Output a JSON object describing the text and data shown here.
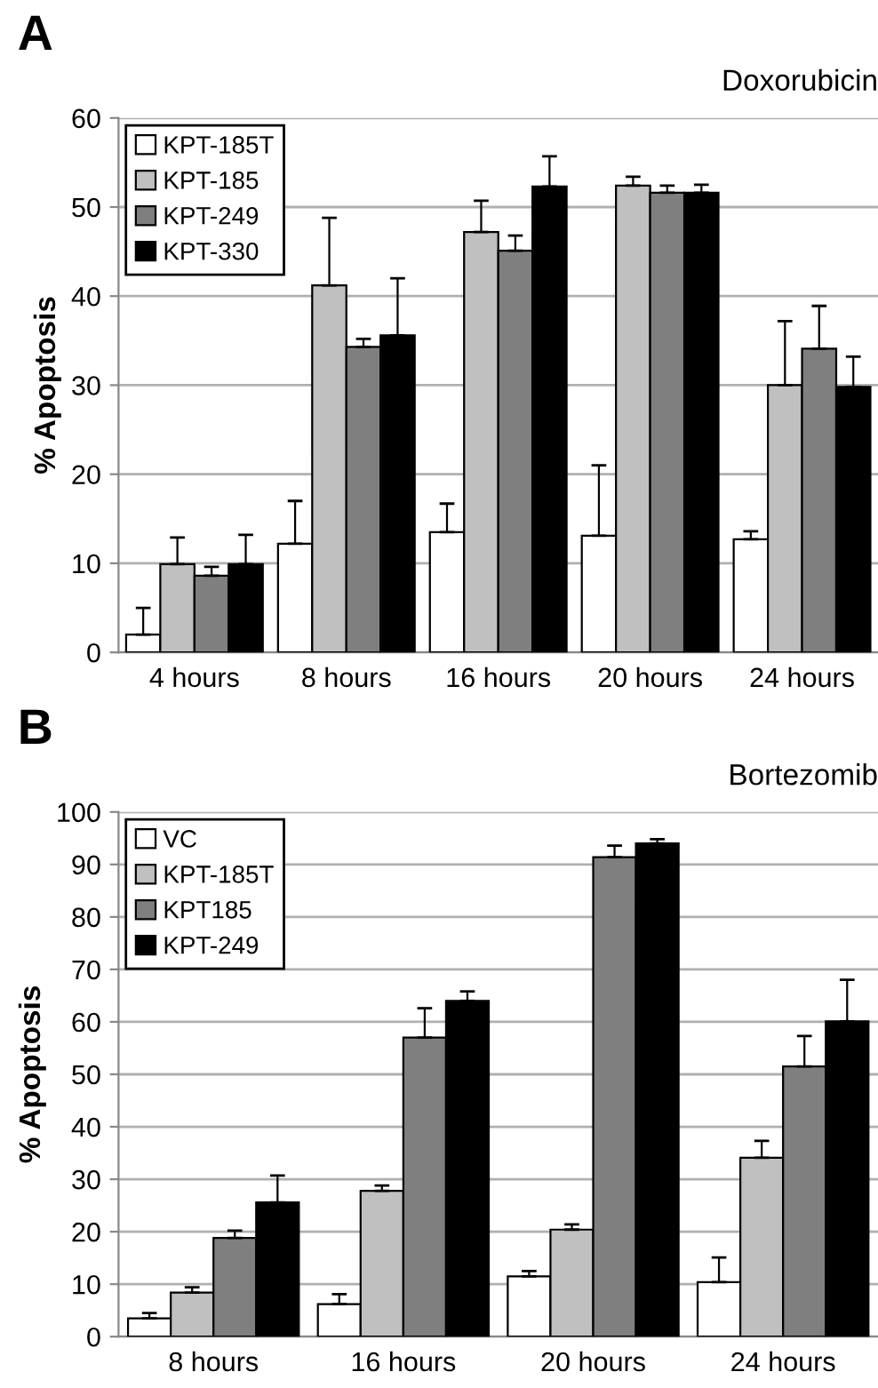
{
  "chart_data": [
    {
      "type": "bar",
      "title": "A",
      "subtitle": "Doxorubicin",
      "ylabel": "% Apoptosis",
      "categories": [
        "4 hours",
        "8 hours",
        "16 hours",
        "20 hours",
        "24 hours"
      ],
      "series": [
        {
          "name": "KPT-185T",
          "color": "#ffffff",
          "values": [
            2,
            12.2,
            13.5,
            13.1,
            12.7
          ],
          "errors": [
            [
              2,
              5
            ],
            [
              12.2,
              17
            ],
            [
              13.5,
              16.7
            ],
            [
              13.1,
              21
            ],
            [
              12.7,
              13.6
            ]
          ]
        },
        {
          "name": "KPT-185",
          "color": "#c0c0c0",
          "values": [
            9.9,
            41.2,
            47.2,
            52.4,
            30
          ],
          "errors": [
            [
              9.9,
              12.9
            ],
            [
              41.2,
              48.8
            ],
            [
              47.2,
              50.7
            ],
            [
              52.4,
              53.4
            ],
            [
              30,
              37.2
            ]
          ]
        },
        {
          "name": "KPT-249",
          "color": "#7f7f7f",
          "values": [
            8.6,
            34.3,
            45.1,
            51.6,
            34.1
          ],
          "errors": [
            [
              8.6,
              9.6
            ],
            [
              34.3,
              35.2
            ],
            [
              45.1,
              46.8
            ],
            [
              51.6,
              52.4
            ],
            [
              34.1,
              38.9
            ]
          ]
        },
        {
          "name": "KPT-330",
          "color": "#000000",
          "values": [
            9.9,
            35.6,
            52.3,
            51.6,
            29.8
          ],
          "errors": [
            [
              9.9,
              13.2
            ],
            [
              35.6,
              42
            ],
            [
              52.3,
              55.7
            ],
            [
              51.6,
              52.5
            ],
            [
              29.8,
              33.2
            ]
          ]
        }
      ],
      "ylim": [
        0,
        60
      ],
      "yticks": [
        0,
        10,
        20,
        30,
        40,
        50,
        60
      ],
      "grid": "y",
      "legend": "top left"
    },
    {
      "type": "bar",
      "title": "B",
      "subtitle": "Bortezomib",
      "ylabel": "% Apoptosis",
      "categories": [
        "8 hours",
        "16 hours",
        "20 hours",
        "24 hours"
      ],
      "series": [
        {
          "name": "VC",
          "color": "#ffffff",
          "values": [
            3.5,
            6.2,
            11.5,
            10.4
          ],
          "errors": [
            [
              3.5,
              4.5
            ],
            [
              6.2,
              8.1
            ],
            [
              11.5,
              12.5
            ],
            [
              10.4,
              15.1
            ]
          ]
        },
        {
          "name": "KPT-185T",
          "color": "#c0c0c0",
          "values": [
            8.4,
            27.8,
            20.4,
            34.1
          ],
          "errors": [
            [
              8.4,
              9.4
            ],
            [
              27.8,
              28.8
            ],
            [
              20.4,
              21.4
            ],
            [
              34.1,
              37.3
            ]
          ]
        },
        {
          "name": "KPT185",
          "color": "#7f7f7f",
          "values": [
            18.8,
            57,
            91.4,
            51.5
          ],
          "errors": [
            [
              18.8,
              20.2
            ],
            [
              57,
              62.6
            ],
            [
              91.4,
              93.6
            ],
            [
              51.5,
              57.3
            ]
          ]
        },
        {
          "name": "KPT-249",
          "color": "#000000",
          "values": [
            25.6,
            64,
            94,
            60.1
          ],
          "errors": [
            [
              25.6,
              30.7
            ],
            [
              64,
              65.8
            ],
            [
              94,
              94.8
            ],
            [
              60.1,
              68
            ]
          ]
        }
      ],
      "ylim": [
        0,
        100
      ],
      "yticks": [
        0,
        10,
        20,
        30,
        40,
        50,
        60,
        70,
        80,
        90,
        100
      ],
      "grid": "y",
      "legend": "top left"
    }
  ]
}
